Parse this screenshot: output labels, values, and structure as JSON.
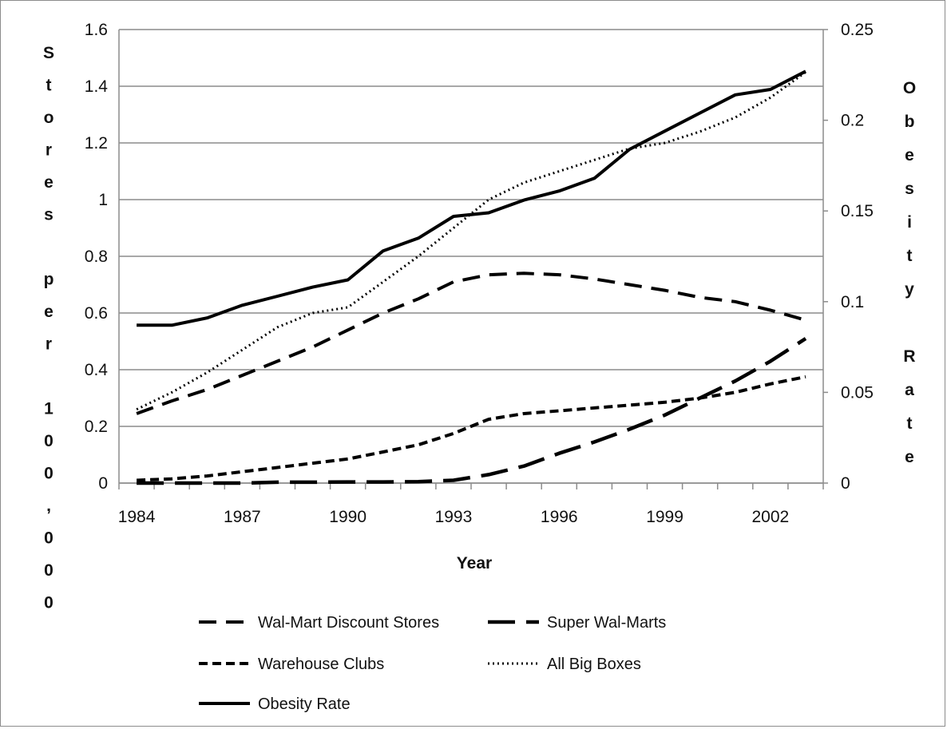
{
  "chart_data": {
    "type": "line",
    "title": "",
    "xlabel": "Year",
    "ylabel_left": "Stores per 100,000",
    "ylabel_right": "Obesity Rate",
    "x": [
      1984,
      1985,
      1986,
      1987,
      1988,
      1989,
      1990,
      1991,
      1992,
      1993,
      1994,
      1995,
      1996,
      1997,
      1998,
      1999,
      2000,
      2001,
      2002,
      2003
    ],
    "x_tick_labels": [
      "1984",
      "1987",
      "1990",
      "1993",
      "1996",
      "1999",
      "2002"
    ],
    "ylim_left": [
      0,
      1.6
    ],
    "y_ticks_left": [
      "0",
      "0.2",
      "0.4",
      "0.6",
      "0.8",
      "1",
      "1.2",
      "1.4",
      "1.6"
    ],
    "ylim_right": [
      0,
      0.25
    ],
    "y_ticks_right": [
      "0",
      "0.05",
      "0.1",
      "0.15",
      "0.2",
      "0.25"
    ],
    "grid": "horizontal",
    "legend_position": "bottom",
    "series": [
      {
        "name": "Wal-Mart Discount Stores",
        "axis": "left",
        "style": "long-dash",
        "values": [
          0.245,
          0.29,
          0.33,
          0.38,
          0.43,
          0.48,
          0.54,
          0.6,
          0.65,
          0.71,
          0.735,
          0.74,
          0.735,
          0.72,
          0.7,
          0.68,
          0.655,
          0.64,
          0.61,
          0.575
        ]
      },
      {
        "name": "Super Wal-Marts",
        "axis": "left",
        "style": "extra-long-dash",
        "values": [
          0.0,
          0.0,
          0.0,
          0.0,
          0.003,
          0.003,
          0.004,
          0.004,
          0.005,
          0.01,
          0.03,
          0.06,
          0.105,
          0.145,
          0.19,
          0.24,
          0.3,
          0.36,
          0.43,
          0.51
        ]
      },
      {
        "name": "Warehouse Clubs",
        "axis": "left",
        "style": "short-dash",
        "values": [
          0.01,
          0.015,
          0.025,
          0.04,
          0.055,
          0.07,
          0.085,
          0.11,
          0.135,
          0.175,
          0.225,
          0.245,
          0.255,
          0.265,
          0.275,
          0.285,
          0.3,
          0.32,
          0.35,
          0.375
        ]
      },
      {
        "name": "All Big Boxes",
        "axis": "left",
        "style": "dotted",
        "values": [
          0.26,
          0.32,
          0.39,
          0.47,
          0.55,
          0.6,
          0.62,
          0.71,
          0.8,
          0.9,
          1.0,
          1.06,
          1.1,
          1.14,
          1.18,
          1.2,
          1.24,
          1.29,
          1.36,
          1.45
        ]
      },
      {
        "name": "Obesity Rate",
        "axis": "right",
        "style": "solid",
        "values": [
          0.087,
          0.087,
          0.091,
          0.098,
          0.103,
          0.108,
          0.112,
          0.128,
          0.135,
          0.147,
          0.149,
          0.156,
          0.161,
          0.168,
          0.184,
          0.194,
          0.204,
          0.214,
          0.217,
          0.227
        ]
      }
    ]
  },
  "colors": {
    "line": "#000000",
    "grid": "#8c8c8c",
    "axis": "#8c8c8c",
    "frame": "#8c8c8c"
  }
}
